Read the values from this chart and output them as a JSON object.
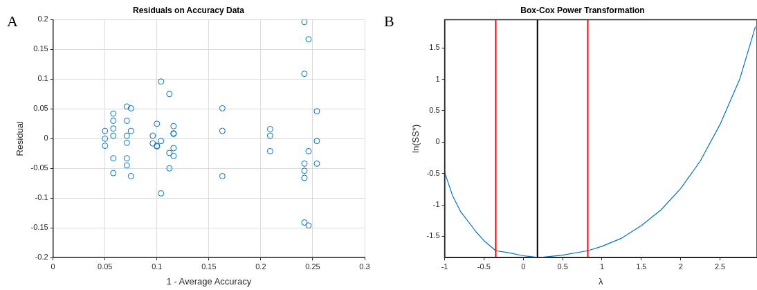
{
  "chart_data": [
    {
      "type": "scatter",
      "title": "Residuals on Accuracy Data",
      "xlabel": "1 - Average Accuracy",
      "ylabel": "Residual",
      "annotations": [
        "A"
      ],
      "marker": "circle",
      "grid": true,
      "xlim": [
        0,
        0.3
      ],
      "xticks": [
        0,
        0.05,
        0.1,
        0.15,
        0.2,
        0.25,
        0.3
      ],
      "ylim": [
        -0.2,
        0.2
      ],
      "yticks": [
        -0.2,
        -0.15,
        -0.1,
        -0.05,
        0,
        0.05,
        0.1,
        0.15,
        0.2
      ],
      "series": [
        {
          "color": "#0072bd",
          "x": [
            0.05,
            0.05,
            0.05,
            0.058,
            0.058,
            0.058,
            0.058,
            0.058,
            0.058,
            0.071,
            0.071,
            0.071,
            0.071,
            0.071,
            0.071,
            0.075,
            0.075,
            0.075,
            0.096,
            0.096,
            0.1,
            0.1,
            0.1,
            0.104,
            0.104,
            0.104,
            0.112,
            0.112,
            0.112,
            0.116,
            0.116,
            0.116,
            0.116,
            0.116,
            0.163,
            0.163,
            0.163,
            0.209,
            0.209,
            0.209,
            0.242,
            0.242,
            0.242,
            0.242,
            0.242,
            0.242,
            0.246,
            0.246,
            0.246,
            0.254,
            0.254,
            0.254
          ],
          "values": [
            0.013,
            0,
            -0.012,
            0.042,
            0.03,
            0.017,
            0.005,
            -0.033,
            -0.058,
            0.054,
            0.03,
            0.005,
            -0.007,
            -0.033,
            -0.045,
            0.051,
            0.013,
            -0.063,
            0.005,
            -0.008,
            0.025,
            -0.012,
            -0.013,
            0.096,
            -0.004,
            -0.092,
            0.075,
            -0.024,
            -0.05,
            0.021,
            0.009,
            0.008,
            -0.016,
            -0.029,
            0.051,
            0.013,
            -0.063,
            0.016,
            0.005,
            -0.021,
            0.196,
            0.109,
            -0.042,
            -0.054,
            -0.066,
            -0.141,
            0.167,
            -0.021,
            -0.146,
            0.046,
            -0.004,
            -0.042
          ]
        }
      ]
    },
    {
      "type": "line",
      "title": "Box-Cox Power Transformation",
      "xlabel": "λ",
      "ylabel": "ln(SS*)",
      "annotations": [
        "B"
      ],
      "marker": "none",
      "grid": false,
      "xlim": [
        -1,
        2.97
      ],
      "xticks": [
        -1,
        -0.5,
        0,
        0.5,
        1,
        1.5,
        2,
        2.5
      ],
      "ylim": [
        -1.84,
        1.95
      ],
      "yticks": [
        -1.5,
        -1,
        -0.5,
        0,
        0.5,
        1,
        1.5
      ],
      "series": [
        {
          "color": "#0072bd",
          "x": [
            -1,
            -0.9,
            -0.8,
            -0.6,
            -0.5,
            -0.35,
            -0.2,
            0,
            0.2,
            0.5,
            0.82,
            1,
            1.25,
            1.5,
            1.75,
            2,
            2.25,
            2.5,
            2.75,
            2.95
          ],
          "values": [
            -0.48,
            -0.85,
            -1.1,
            -1.43,
            -1.57,
            -1.73,
            -1.76,
            -1.81,
            -1.84,
            -1.8,
            -1.73,
            -1.66,
            -1.53,
            -1.33,
            -1.08,
            -0.74,
            -0.3,
            0.28,
            1.0,
            1.84
          ]
        }
      ],
      "ref_lines": [
        {
          "axis": "x",
          "value": -0.35,
          "color": "#ff0000"
        },
        {
          "axis": "x",
          "value": 0.18,
          "color": "#000000"
        },
        {
          "axis": "x",
          "value": 0.82,
          "color": "#ff0000"
        }
      ]
    }
  ]
}
